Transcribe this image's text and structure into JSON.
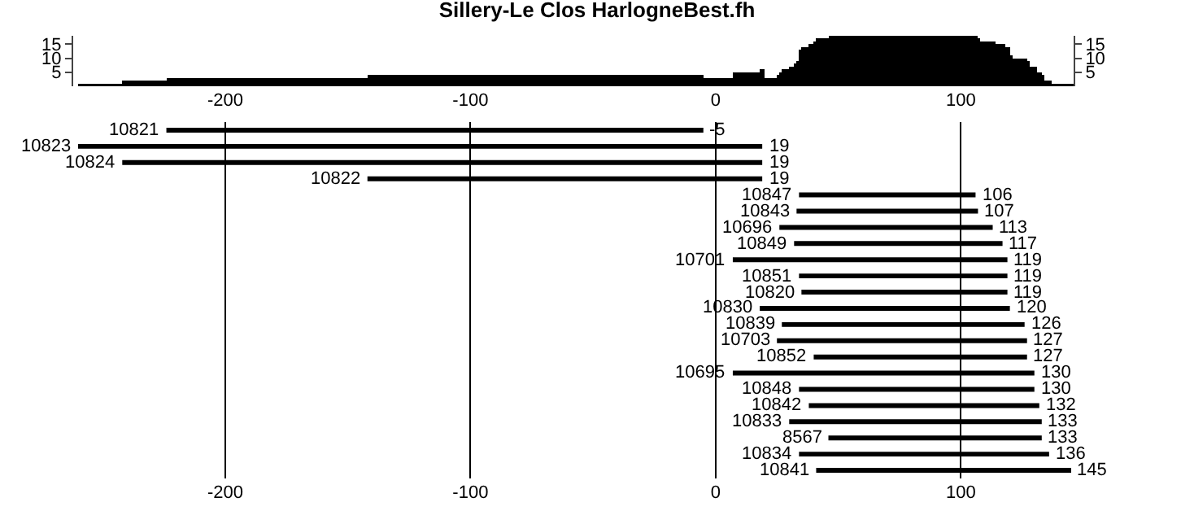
{
  "chart_data": [
    {
      "type": "histogram",
      "title": "Sillery-Le Clos HarlogneBest.fh",
      "color": "#000000",
      "bins": [
        -260,
        -242,
        -224,
        -142,
        -5,
        7,
        18,
        20,
        25,
        26,
        27,
        30,
        32,
        33,
        34,
        35,
        38,
        40,
        41,
        46,
        107,
        108,
        114,
        118,
        120,
        121,
        127,
        128,
        131,
        133,
        134,
        137,
        146
      ],
      "values": [
        1,
        2,
        3,
        4,
        3,
        5,
        6,
        3,
        4,
        5,
        6,
        7,
        8,
        9,
        13,
        14,
        15,
        16,
        17,
        18,
        17,
        16,
        15,
        14,
        11,
        10,
        9,
        7,
        5,
        4,
        2,
        1
      ],
      "xlim": [
        -262,
        146
      ],
      "xticks": [
        -200,
        -100,
        0,
        100
      ],
      "ylim": [
        0,
        18
      ],
      "yticks": [
        5,
        10,
        15
      ],
      "y2lim": [
        0,
        18
      ],
      "y2ticks": [
        5,
        10,
        15
      ]
    },
    {
      "type": "bar",
      "orientation": "horizontal",
      "color": "#000000",
      "categories": [
        "10821",
        "10823",
        "10824",
        "10822",
        "10847",
        "10843",
        "10696",
        "10849",
        "10701",
        "10851",
        "10820",
        "10830",
        "10839",
        "10703",
        "10852",
        "10695",
        "10848",
        "10842",
        "10833",
        "8567",
        "10834",
        "10841"
      ],
      "base": [
        -224,
        -260,
        -242,
        -142,
        34,
        33,
        26,
        32,
        7,
        34,
        35,
        18,
        27,
        25,
        40,
        7,
        34,
        38,
        30,
        46,
        34,
        41
      ],
      "values": [
        219,
        279,
        261,
        161,
        72,
        74,
        87,
        85,
        112,
        85,
        84,
        102,
        99,
        102,
        87,
        123,
        96,
        94,
        103,
        87,
        102,
        104
      ],
      "value_labels": [
        "-5",
        "19",
        "19",
        "19",
        "106",
        "107",
        "113",
        "117",
        "119",
        "119",
        "119",
        "120",
        "126",
        "127",
        "127",
        "130",
        "130",
        "132",
        "133",
        "133",
        "136",
        "145"
      ],
      "xlim": [
        -262,
        146
      ],
      "xticks": [
        -200,
        -100,
        0,
        100
      ],
      "grid": "x"
    }
  ]
}
